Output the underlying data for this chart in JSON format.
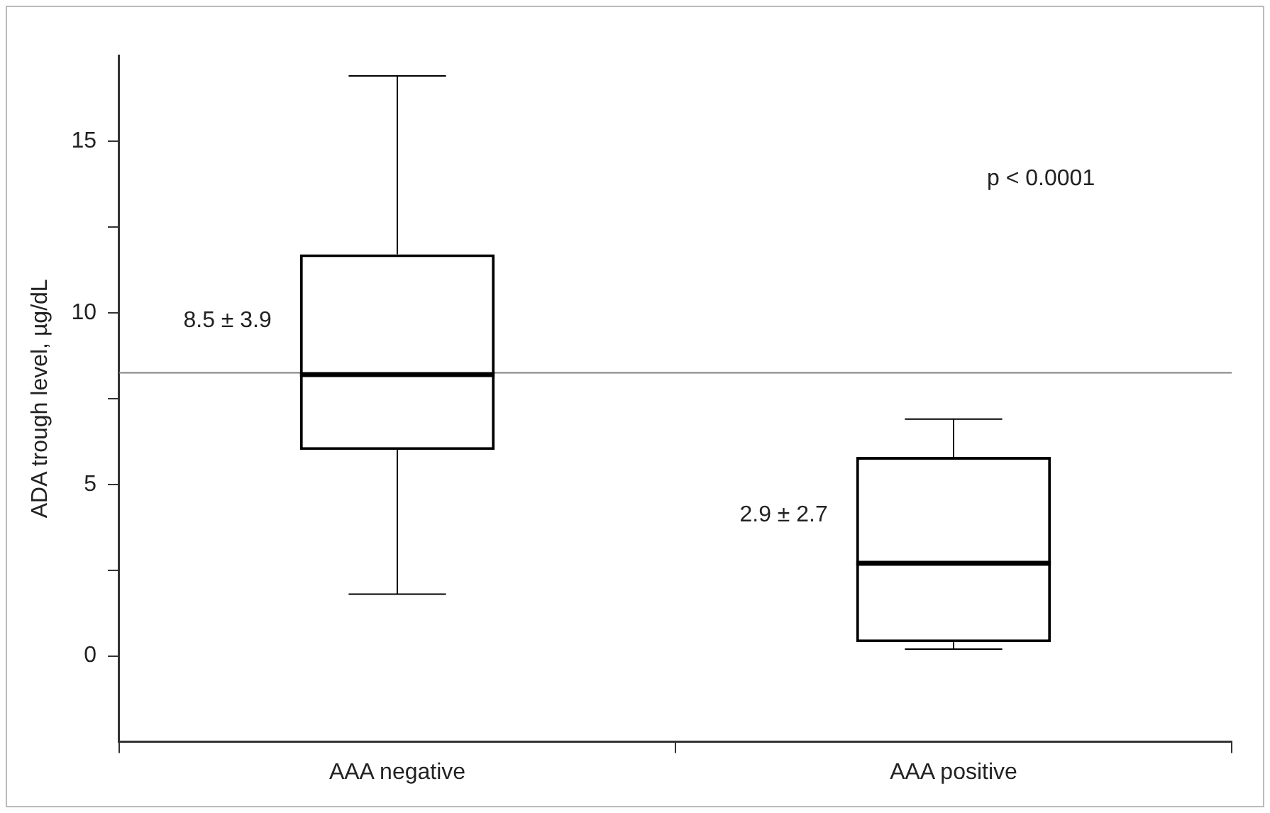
{
  "chart_data": {
    "type": "box",
    "ylabel": "ADA trough level, µg/dL",
    "categories": [
      "AAA negative",
      "AAA positive"
    ],
    "boxes": [
      {
        "low": 1.8,
        "q1": 6.0,
        "median": 8.2,
        "q3": 11.7,
        "high": 16.9
      },
      {
        "low": 0.2,
        "q1": 0.4,
        "median": 2.7,
        "q3": 5.8,
        "high": 6.9
      }
    ],
    "color": "#000000",
    "ylim": [
      -2.5,
      17.5
    ],
    "yticks": [
      0,
      {
        "value": 2.5,
        "label": null
      },
      5,
      {
        "value": 7.5,
        "label": null
      },
      10,
      {
        "value": 12.5,
        "label": null
      },
      15
    ],
    "ref_lines": [
      {
        "axis": "y",
        "value": 8.25,
        "color": "#808080"
      }
    ],
    "annotations": [
      "8.5 ± 3.9",
      "2.9 ± 2.7",
      "p < 0.0001"
    ],
    "grid": false,
    "legend": false
  }
}
